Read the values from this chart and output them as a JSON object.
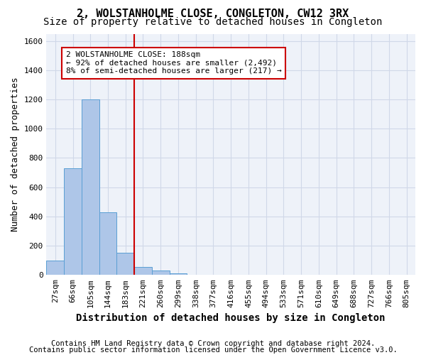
{
  "title": "2, WOLSTANHOLME CLOSE, CONGLETON, CW12 3RX",
  "subtitle": "Size of property relative to detached houses in Congleton",
  "xlabel": "Distribution of detached houses by size in Congleton",
  "ylabel": "Number of detached properties",
  "footer_line1": "Contains HM Land Registry data © Crown copyright and database right 2024.",
  "footer_line2": "Contains public sector information licensed under the Open Government Licence v3.0.",
  "bin_labels": [
    "27sqm",
    "66sqm",
    "105sqm",
    "144sqm",
    "183sqm",
    "221sqm",
    "260sqm",
    "299sqm",
    "338sqm",
    "377sqm",
    "416sqm",
    "455sqm",
    "494sqm",
    "533sqm",
    "571sqm",
    "610sqm",
    "649sqm",
    "688sqm",
    "727sqm",
    "766sqm",
    "805sqm"
  ],
  "bar_values": [
    100,
    730,
    1200,
    430,
    150,
    55,
    30,
    10,
    0,
    0,
    0,
    0,
    0,
    0,
    0,
    0,
    0,
    0,
    0,
    0,
    0
  ],
  "bar_color": "#aec6e8",
  "bar_edge_color": "#5a9fd4",
  "grid_color": "#d0d8e8",
  "background_color": "#eef2f9",
  "annotation_box_color": "#cc0000",
  "annotation_text_line1": "2 WOLSTANHOLME CLOSE: 188sqm",
  "annotation_text_line2": "← 92% of detached houses are smaller (2,492)",
  "annotation_text_line3": "8% of semi-detached houses are larger (217) →",
  "property_line_x": 4.5,
  "ylim": [
    0,
    1650
  ],
  "yticks": [
    0,
    200,
    400,
    600,
    800,
    1000,
    1200,
    1400,
    1600
  ],
  "title_fontsize": 11,
  "subtitle_fontsize": 10,
  "axis_label_fontsize": 9,
  "tick_fontsize": 8,
  "annotation_fontsize": 8,
  "footer_fontsize": 7.5
}
